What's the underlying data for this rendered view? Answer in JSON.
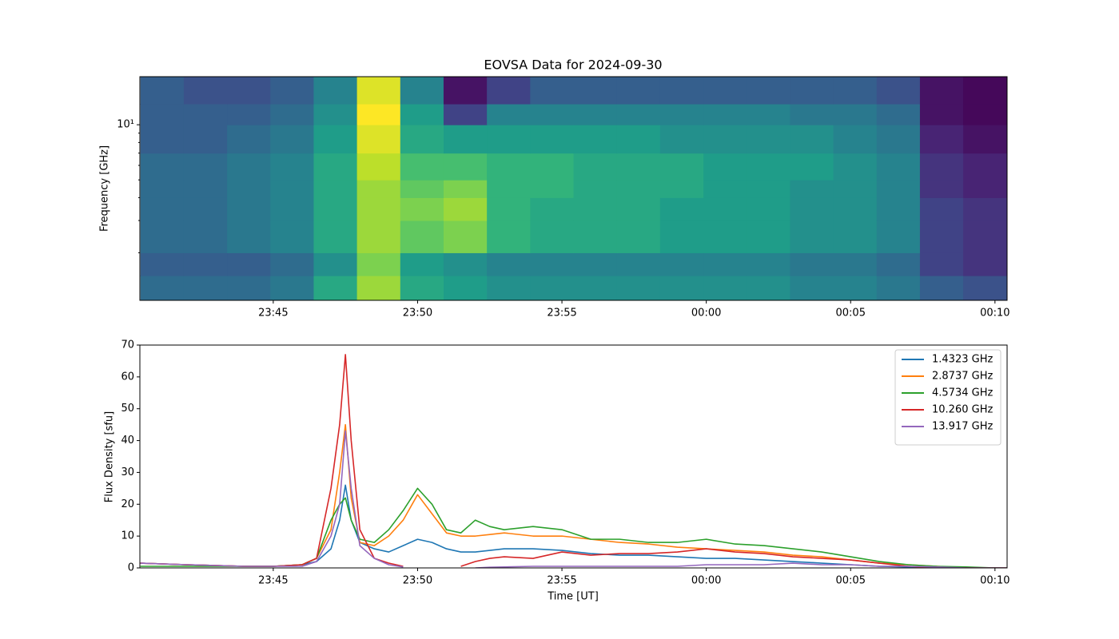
{
  "chart_data": [
    {
      "type": "heatmap",
      "title": "EOVSA Data for 2024-09-30",
      "y_label": "Frequency [GHz]",
      "colormap": "viridis",
      "ylog": true,
      "xlim": [
        1420.38,
        1450.42
      ],
      "ylim": [
        1.1,
        18.3
      ],
      "xticks": [
        {
          "value": 1425,
          "label": "23:45"
        },
        {
          "value": 1430,
          "label": "23:50"
        },
        {
          "value": 1435,
          "label": "23:55"
        },
        {
          "value": 1440,
          "label": "00:00"
        },
        {
          "value": 1445,
          "label": "00:05"
        },
        {
          "value": 1450,
          "label": "00:10"
        }
      ],
      "yticks": [
        {
          "value": 10,
          "label": "10¹"
        }
      ],
      "yminorticks": [
        2,
        3,
        4,
        5,
        6,
        7,
        8,
        9
      ],
      "time_bins": [
        1420.4,
        1421.9,
        1423.4,
        1424.9,
        1426.4,
        1427.9,
        1429.4,
        1430.9,
        1432.4,
        1433.9,
        1435.4,
        1436.9,
        1438.4,
        1439.9,
        1441.4,
        1442.9,
        1444.4,
        1445.9,
        1447.4,
        1448.9,
        1450.4
      ],
      "freq_bins": [
        1.1,
        1.5,
        2,
        3,
        4,
        5,
        7,
        10,
        13,
        18.3
      ],
      "z": [
        [
          0.35,
          0.35,
          0.35,
          0.4,
          0.6,
          0.85,
          0.6,
          0.55,
          0.5,
          0.5,
          0.5,
          0.5,
          0.5,
          0.5,
          0.5,
          0.45,
          0.45,
          0.4,
          0.3,
          0.25
        ],
        [
          0.3,
          0.3,
          0.3,
          0.35,
          0.5,
          0.8,
          0.55,
          0.5,
          0.45,
          0.45,
          0.45,
          0.45,
          0.45,
          0.45,
          0.45,
          0.4,
          0.4,
          0.35,
          0.2,
          0.15
        ],
        [
          0.35,
          0.35,
          0.4,
          0.45,
          0.6,
          0.85,
          0.75,
          0.8,
          0.65,
          0.6,
          0.6,
          0.6,
          0.55,
          0.55,
          0.55,
          0.5,
          0.5,
          0.45,
          0.2,
          0.15
        ],
        [
          0.35,
          0.35,
          0.4,
          0.45,
          0.6,
          0.85,
          0.8,
          0.85,
          0.65,
          0.6,
          0.6,
          0.6,
          0.55,
          0.55,
          0.55,
          0.5,
          0.5,
          0.45,
          0.2,
          0.15
        ],
        [
          0.35,
          0.35,
          0.4,
          0.45,
          0.6,
          0.85,
          0.75,
          0.8,
          0.65,
          0.65,
          0.6,
          0.6,
          0.6,
          0.55,
          0.55,
          0.5,
          0.5,
          0.45,
          0.15,
          0.1
        ],
        [
          0.35,
          0.35,
          0.4,
          0.45,
          0.6,
          0.9,
          0.7,
          0.7,
          0.65,
          0.65,
          0.6,
          0.6,
          0.6,
          0.55,
          0.55,
          0.55,
          0.5,
          0.45,
          0.15,
          0.1
        ],
        [
          0.3,
          0.3,
          0.35,
          0.4,
          0.55,
          0.95,
          0.6,
          0.55,
          0.55,
          0.55,
          0.55,
          0.55,
          0.5,
          0.5,
          0.5,
          0.5,
          0.45,
          0.4,
          0.1,
          0.05
        ],
        [
          0.3,
          0.3,
          0.3,
          0.35,
          0.5,
          1,
          0.55,
          0.2,
          0.45,
          0.45,
          0.45,
          0.45,
          0.45,
          0.45,
          0.45,
          0.4,
          0.4,
          0.35,
          0.05,
          0.02
        ],
        [
          0.3,
          0.25,
          0.25,
          0.3,
          0.45,
          0.95,
          0.45,
          0.05,
          0.2,
          0.3,
          0.3,
          0.3,
          0.3,
          0.3,
          0.3,
          0.3,
          0.3,
          0.25,
          0.05,
          0.02
        ]
      ]
    },
    {
      "type": "line",
      "x_label": "Time [UT]",
      "y_label": "Flux Density [sfu]",
      "legend": "upper right",
      "xlim": [
        1420.38,
        1450.42
      ],
      "ylim": [
        0,
        70
      ],
      "xticks": [
        {
          "value": 1425,
          "label": "23:45"
        },
        {
          "value": 1430,
          "label": "23:50"
        },
        {
          "value": 1435,
          "label": "23:55"
        },
        {
          "value": 1440,
          "label": "00:00"
        },
        {
          "value": 1445,
          "label": "00:05"
        },
        {
          "value": 1450,
          "label": "00:10"
        }
      ],
      "yticks": [
        0,
        10,
        20,
        30,
        40,
        50,
        60,
        70
      ],
      "x": [
        1420.4,
        1422,
        1424,
        1425,
        1426,
        1426.5,
        1427,
        1427.3,
        1427.5,
        1427.7,
        1428,
        1428.5,
        1429,
        1429.5,
        1430,
        1430.5,
        1431,
        1431.5,
        1432,
        1432.5,
        1433,
        1434,
        1435,
        1436,
        1437,
        1438,
        1439,
        1440,
        1441,
        1442,
        1443,
        1444,
        1445,
        1446,
        1447,
        1448,
        1449,
        1450,
        1450.4
      ],
      "series": [
        {
          "name": "1.4323 GHz",
          "color": "#1f77b4",
          "values": [
            1.5,
            1,
            0.5,
            0.5,
            1,
            2,
            6,
            15,
            26,
            15,
            8,
            6,
            5,
            7,
            9,
            8,
            6,
            5,
            5,
            5.5,
            6,
            6,
            5.5,
            4.5,
            4,
            4,
            3.5,
            3,
            3,
            2.5,
            2,
            1.5,
            1,
            0.5,
            0.3,
            0,
            0,
            0,
            0
          ]
        },
        {
          "name": "2.8737 GHz",
          "color": "#ff7f0e",
          "values": [
            1.5,
            1,
            0.5,
            0.5,
            1,
            3,
            12,
            30,
            45,
            22,
            8,
            7,
            10,
            15,
            23,
            17,
            11,
            10,
            10,
            10.5,
            11,
            10,
            10,
            9,
            8,
            7.5,
            6.5,
            6,
            5.5,
            5,
            4,
            3.5,
            2.5,
            1.5,
            1,
            0.5,
            0,
            0,
            0
          ]
        },
        {
          "name": "4.5734 GHz",
          "color": "#2ca02c",
          "values": [
            0.5,
            0.5,
            0.5,
            0.5,
            1,
            3,
            15,
            20,
            22,
            15,
            9,
            8,
            12,
            18,
            25,
            20,
            12,
            11,
            15,
            13,
            12,
            13,
            12,
            9,
            9,
            8,
            8,
            9,
            7.5,
            7,
            6,
            5,
            3.5,
            2,
            1,
            0.5,
            0.3,
            0,
            0
          ]
        },
        {
          "name": "10.260 GHz",
          "color": "#d62728",
          "values": [
            1.5,
            1,
            0.5,
            0.5,
            1,
            3,
            25,
            45,
            67,
            40,
            12,
            3,
            1.5,
            0.5,
            null,
            null,
            null,
            0.5,
            2,
            3,
            3.5,
            3,
            5,
            4,
            4.5,
            4.5,
            5,
            6,
            5,
            4.5,
            3.5,
            3,
            2.5,
            1.5,
            0.5,
            0,
            0,
            0,
            0
          ]
        },
        {
          "name": "13.917 GHz",
          "color": "#9467bd",
          "values": [
            1.5,
            1,
            0.5,
            0.5,
            0.5,
            2,
            10,
            20,
            43,
            25,
            7,
            3,
            1,
            0.3,
            null,
            null,
            null,
            null,
            0,
            0.2,
            0.3,
            0.5,
            0.5,
            0.5,
            0.5,
            0.5,
            0.5,
            1,
            1,
            1,
            1.5,
            1,
            1,
            0.5,
            0.5,
            0.3,
            0,
            0,
            0
          ]
        }
      ]
    }
  ]
}
